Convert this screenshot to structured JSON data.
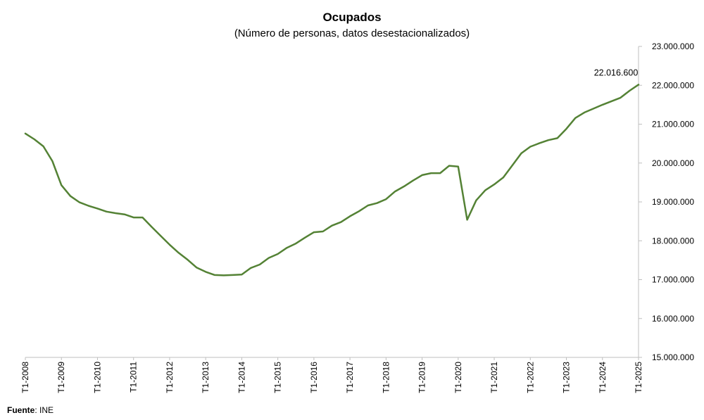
{
  "chart_data": {
    "type": "line",
    "title": "Ocupados",
    "subtitle": "(Número de personas, datos desestacionalizados)",
    "xlabel": "",
    "ylabel": "",
    "ylim": [
      15000000,
      23000000
    ],
    "yticks": [
      "15.000.000",
      "16.000.000",
      "17.000.000",
      "18.000.000",
      "19.000.000",
      "20.000.000",
      "21.000.000",
      "22.000.000",
      "23.000.000"
    ],
    "xticks": [
      "T1-2008",
      "T1-2009",
      "T1-2010",
      "T1-2011",
      "T1-2012",
      "T1-2013",
      "T1-2014",
      "T1-2015",
      "T1-2016",
      "T1-2017",
      "T1-2018",
      "T1-2019",
      "T1-2020",
      "T1-2021",
      "T1-2022",
      "T1-2023",
      "T1-2024",
      "T1-2025"
    ],
    "grid": false,
    "y_axis_position": "right",
    "series_color": "#548235",
    "annotation": {
      "label": "22.016.600",
      "at": "T1-2025"
    },
    "series": [
      {
        "name": "",
        "values": [
          20760000,
          20610000,
          20430000,
          20050000,
          19430000,
          19150000,
          18990000,
          18900000,
          18830000,
          18750000,
          18710000,
          18680000,
          18600000,
          18600000,
          18360000,
          18130000,
          17900000,
          17690000,
          17510000,
          17310000,
          17200000,
          17120000,
          17110000,
          17120000,
          17130000,
          17300000,
          17390000,
          17560000,
          17660000,
          17820000,
          17930000,
          18080000,
          18220000,
          18240000,
          18390000,
          18480000,
          18630000,
          18760000,
          18910000,
          18970000,
          19070000,
          19270000,
          19400000,
          19550000,
          19690000,
          19740000,
          19740000,
          19930000,
          19910000,
          18540000,
          19040000,
          19300000,
          19450000,
          19630000,
          19940000,
          20250000,
          20420000,
          20510000,
          20590000,
          20640000,
          20880000,
          21160000,
          21300000,
          21400000,
          21500000,
          21590000,
          21680000,
          21860000,
          22016600
        ]
      }
    ]
  },
  "source": {
    "label": "Fuente",
    "text": ": INE"
  }
}
